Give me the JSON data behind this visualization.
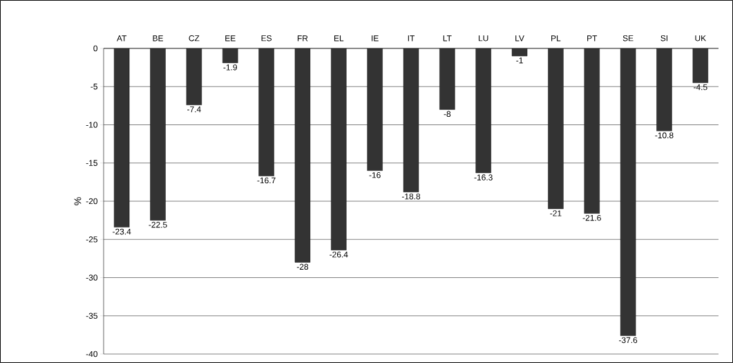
{
  "chart_data": {
    "type": "bar",
    "ylabel": "%",
    "categories": [
      "AT",
      "BE",
      "CZ",
      "EE",
      "ES",
      "FR",
      "EL",
      "IE",
      "IT",
      "LT",
      "LU",
      "LV",
      "PL",
      "PT",
      "SE",
      "SI",
      "UK"
    ],
    "values": [
      -23.4,
      -22.5,
      -7.4,
      -1.9,
      -16.7,
      -28,
      -26.4,
      -16,
      -18.8,
      -8,
      -16.3,
      -1,
      -21,
      -21.6,
      -37.6,
      -10.8,
      -4.5
    ],
    "color": "#333333",
    "ylim": [
      -40,
      0
    ],
    "yticks": [
      0,
      -5,
      -10,
      -15,
      -20,
      -25,
      -30,
      -35,
      -40
    ],
    "grid": "y",
    "data_labels": true
  }
}
